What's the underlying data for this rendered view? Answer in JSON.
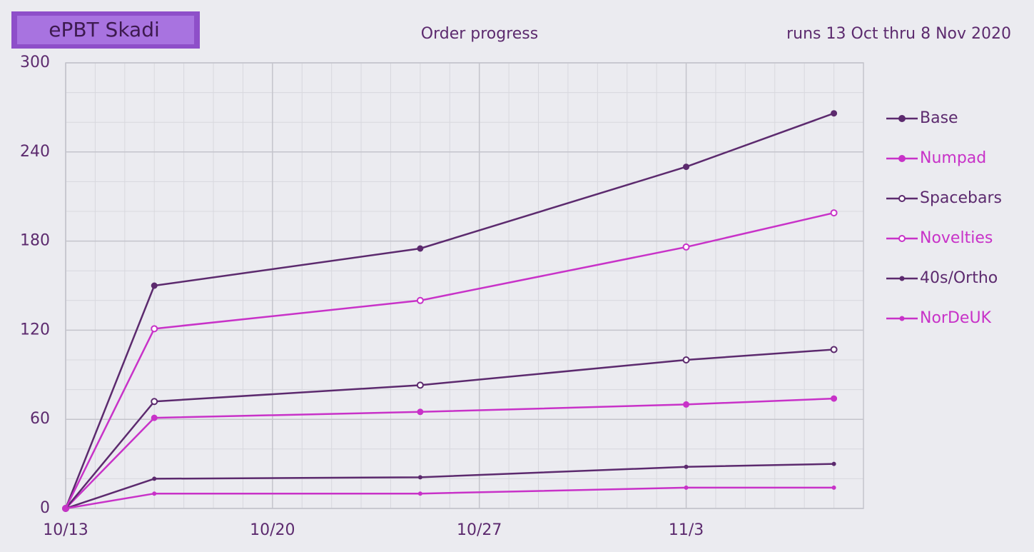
{
  "chart_data": {
    "type": "line",
    "badge": "ePBT Skadi",
    "title": "Order progress",
    "subtitle": "runs 13 Oct thru 8 Nov 2020",
    "x": [
      "10/13",
      "10/16",
      "10/25",
      "11/3",
      "11/8"
    ],
    "xlim": [
      "10/13",
      "11/9"
    ],
    "xticks": [
      "10/13",
      "10/20",
      "10/27",
      "11/3"
    ],
    "ylim": [
      0,
      300
    ],
    "yticks": [
      0,
      60,
      120,
      180,
      240,
      300
    ],
    "grid": true,
    "legend": "right",
    "series": [
      {
        "name": "Base",
        "color": "#5c2a6e",
        "marker": "filled",
        "values": [
          0,
          150,
          175,
          230,
          266
        ]
      },
      {
        "name": "Numpad",
        "color": "#c832c8",
        "marker": "filled",
        "values": [
          0,
          61,
          65,
          70,
          74
        ]
      },
      {
        "name": "Spacebars",
        "color": "#5c2a6e",
        "marker": "hollow",
        "values": [
          0,
          72,
          83,
          100,
          107
        ]
      },
      {
        "name": "Novelties",
        "color": "#c832c8",
        "marker": "hollow",
        "values": [
          0,
          121,
          140,
          176,
          199
        ]
      },
      {
        "name": "40s/Ortho",
        "color": "#5c2a6e",
        "marker": "dot",
        "values": [
          0,
          20,
          21,
          28,
          30
        ]
      },
      {
        "name": "NorDeUK",
        "color": "#c832c8",
        "marker": "dot",
        "values": [
          0,
          10,
          10,
          14,
          14
        ]
      }
    ]
  }
}
